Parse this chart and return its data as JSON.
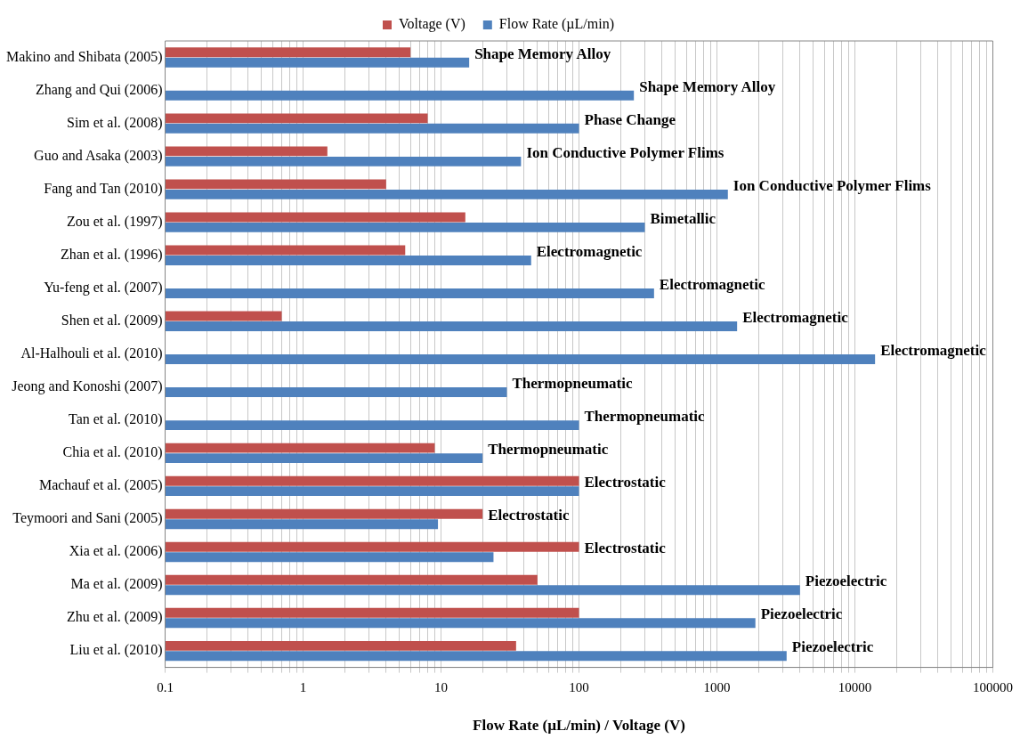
{
  "chart_data": {
    "type": "bar",
    "orientation": "horizontal",
    "xlabel": "Flow Rate (µL/min) / Voltage (V)",
    "categories": [
      "Makino and Shibata (2005)",
      "Zhang and Qui (2006)",
      "Sim et al. (2008)",
      "Guo and Asaka (2003)",
      "Fang and Tan (2010)",
      "Zou et al. (1997)",
      "Zhan et al. (1996)",
      "Yu-feng et al. (2007)",
      "Shen et al. (2009)",
      "Al-Halhouli et al. (2010)",
      "Jeong and Konoshi (2007)",
      "Tan et al. (2010)",
      "Chia et al. (2010)",
      "Machauf et al. (2005)",
      "Teymoori and Sani (2005)",
      "Xia et al. (2006)",
      "Ma et al. (2009)",
      "Zhu et al. (2009)",
      "Liu et al. (2010)"
    ],
    "series": [
      {
        "name": "Voltage (V)",
        "color": "#c0504d",
        "values": [
          6,
          null,
          8,
          1.5,
          4,
          15,
          5.5,
          null,
          0.7,
          null,
          null,
          null,
          9,
          100,
          20,
          100,
          50,
          100,
          35
        ]
      },
      {
        "name": "Flow Rate (µL/min)",
        "color": "#4f81bd",
        "values": [
          16,
          250,
          100,
          38,
          1200,
          300,
          45,
          350,
          1400,
          14000,
          30,
          100,
          20,
          100,
          9.5,
          24,
          4000,
          1900,
          3200
        ]
      }
    ],
    "log": "x",
    "xlim": [
      0.1,
      100000
    ],
    "xticks": [
      0.1,
      {
        "value": 0.2,
        "label": null
      },
      {
        "value": 0.3,
        "label": null
      },
      {
        "value": 0.4,
        "label": null
      },
      {
        "value": 0.5,
        "label": null
      },
      {
        "value": 0.6,
        "label": null
      },
      {
        "value": 0.7,
        "label": null
      },
      {
        "value": 0.8,
        "label": null
      },
      {
        "value": 0.9,
        "label": null
      },
      1,
      {
        "value": 2,
        "label": null
      },
      {
        "value": 3,
        "label": null
      },
      {
        "value": 4,
        "label": null
      },
      {
        "value": 5,
        "label": null
      },
      {
        "value": 6,
        "label": null
      },
      {
        "value": 7,
        "label": null
      },
      {
        "value": 8,
        "label": null
      },
      {
        "value": 9,
        "label": null
      },
      10,
      {
        "value": 20,
        "label": null
      },
      {
        "value": 30,
        "label": null
      },
      {
        "value": 40,
        "label": null
      },
      {
        "value": 50,
        "label": null
      },
      {
        "value": 60,
        "label": null
      },
      {
        "value": 70,
        "label": null
      },
      {
        "value": 80,
        "label": null
      },
      {
        "value": 90,
        "label": null
      },
      100,
      {
        "value": 200,
        "label": null
      },
      {
        "value": 300,
        "label": null
      },
      {
        "value": 400,
        "label": null
      },
      {
        "value": 500,
        "label": null
      },
      {
        "value": 600,
        "label": null
      },
      {
        "value": 700,
        "label": null
      },
      {
        "value": 800,
        "label": null
      },
      {
        "value": 900,
        "label": null
      },
      1000,
      {
        "value": 2000,
        "label": null
      },
      {
        "value": 3000,
        "label": null
      },
      {
        "value": 4000,
        "label": null
      },
      {
        "value": 5000,
        "label": null
      },
      {
        "value": 6000,
        "label": null
      },
      {
        "value": 7000,
        "label": null
      },
      {
        "value": 8000,
        "label": null
      },
      {
        "value": 9000,
        "label": null
      },
      10000,
      {
        "value": 20000,
        "label": null
      },
      {
        "value": 30000,
        "label": null
      },
      {
        "value": 40000,
        "label": null
      },
      {
        "value": 50000,
        "label": null
      },
      {
        "value": 60000,
        "label": null
      },
      {
        "value": 70000,
        "label": null
      },
      {
        "value": 80000,
        "label": null
      },
      {
        "value": 90000,
        "label": null
      },
      100000
    ],
    "grid": "x",
    "legend": "top",
    "annotations": [
      {
        "text": "Shape Memory Alloy",
        "x": 16,
        "y": "Makino and Shibata (2005)"
      },
      {
        "text": "Shape Memory Alloy",
        "x": 250,
        "y": "Zhang and Qui (2006)"
      },
      {
        "text": "Phase Change",
        "x": 100,
        "y": "Sim et al. (2008)"
      },
      {
        "text": "Ion Conductive Polymer Flims",
        "x": 38,
        "y": "Guo and Asaka (2003)"
      },
      {
        "text": "Ion Conductive Polymer Flims",
        "x": 1200,
        "y": "Fang and Tan (2010)"
      },
      {
        "text": "Bimetallic",
        "x": 300,
        "y": "Zou et al. (1997)"
      },
      {
        "text": "Electromagnetic",
        "x": 45,
        "y": "Zhan et al. (1996)"
      },
      {
        "text": "Electromagnetic",
        "x": 350,
        "y": "Yu-feng et al. (2007)"
      },
      {
        "text": "Electromagnetic",
        "x": 1400,
        "y": "Shen et al. (2009)"
      },
      {
        "text": "Electromagnetic",
        "x": 14000,
        "y": "Al-Halhouli et al. (2010)"
      },
      {
        "text": "Thermopneumatic",
        "x": 30,
        "y": "Jeong and Konoshi (2007)"
      },
      {
        "text": "Thermopneumatic",
        "x": 100,
        "y": "Tan et al. (2010)"
      },
      {
        "text": "Thermopneumatic",
        "x": 20,
        "y": "Chia et al. (2010)"
      },
      {
        "text": "Electrostatic",
        "x": 100,
        "y": "Machauf et al. (2005)"
      },
      {
        "text": "Electrostatic",
        "x": 20,
        "y": "Teymoori and Sani (2005)"
      },
      {
        "text": "Electrostatic",
        "x": 100,
        "y": "Xia et al. (2006)"
      },
      {
        "text": "Piezoelectric",
        "x": 4000,
        "y": "Ma et al. (2009)"
      },
      {
        "text": "Piezoelectric",
        "x": 1900,
        "y": "Zhu et al. (2009)"
      },
      {
        "text": "Piezoelectric",
        "x": 3200,
        "y": "Liu et al. (2010)"
      }
    ]
  }
}
